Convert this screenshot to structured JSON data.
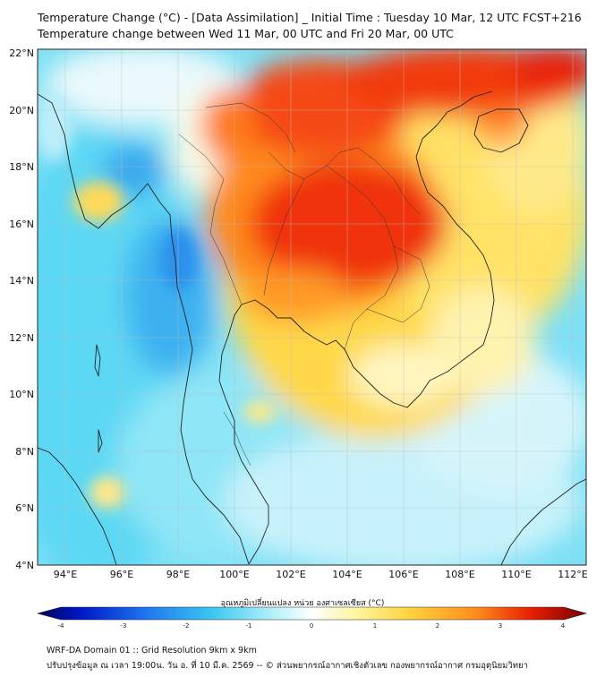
{
  "header": {
    "title": "Temperature Change (°C) - [Data Assimilation] _ Initial Time : Tuesday 10 Mar, 12 UTC FCST+216",
    "subtitle": "Temperature change between Wed 11 Mar, 00 UTC and Fri 20 Mar, 00 UTC"
  },
  "map": {
    "lat_labels": [
      "22°N",
      "20°N",
      "18°N",
      "16°N",
      "14°N",
      "12°N",
      "10°N",
      "8°N",
      "6°N",
      "4°N"
    ],
    "lon_labels": [
      "94°E",
      "96°E",
      "98°E",
      "100°E",
      "102°E",
      "104°E",
      "106°E",
      "108°E",
      "110°E",
      "112°E"
    ],
    "lat_range": [
      4,
      22
    ],
    "lon_range": [
      93,
      112.4
    ]
  },
  "colorbar": {
    "title": "อุณหภูมิเปลี่ยนแปลง หน่วย องศาเซลเซียส (°C)",
    "ticks": [
      "-4",
      "-3",
      "-2",
      "-1",
      "0",
      "1",
      "2",
      "3",
      "4"
    ],
    "range": [
      -4,
      4
    ]
  },
  "footer": {
    "line1": "WRF-DA Domain 01 :: Grid Resolution 9km x 9km",
    "line2": "ปรับปรุงข้อมูล ณ เวลา 19:00น. วัน อ. ที่ 10 มี.ค. 2569 -- © ส่วนพยากรณ์อากาศเชิงตัวเลข กองพยากรณ์อากาศ กรมอุตุนิยมวิทยา"
  },
  "colors": {
    "strong_cool": "#1e90ff",
    "cool": "#48cdf0",
    "neutral": "#ffffff",
    "warm": "#ffd23c",
    "hot": "#f01e00"
  }
}
